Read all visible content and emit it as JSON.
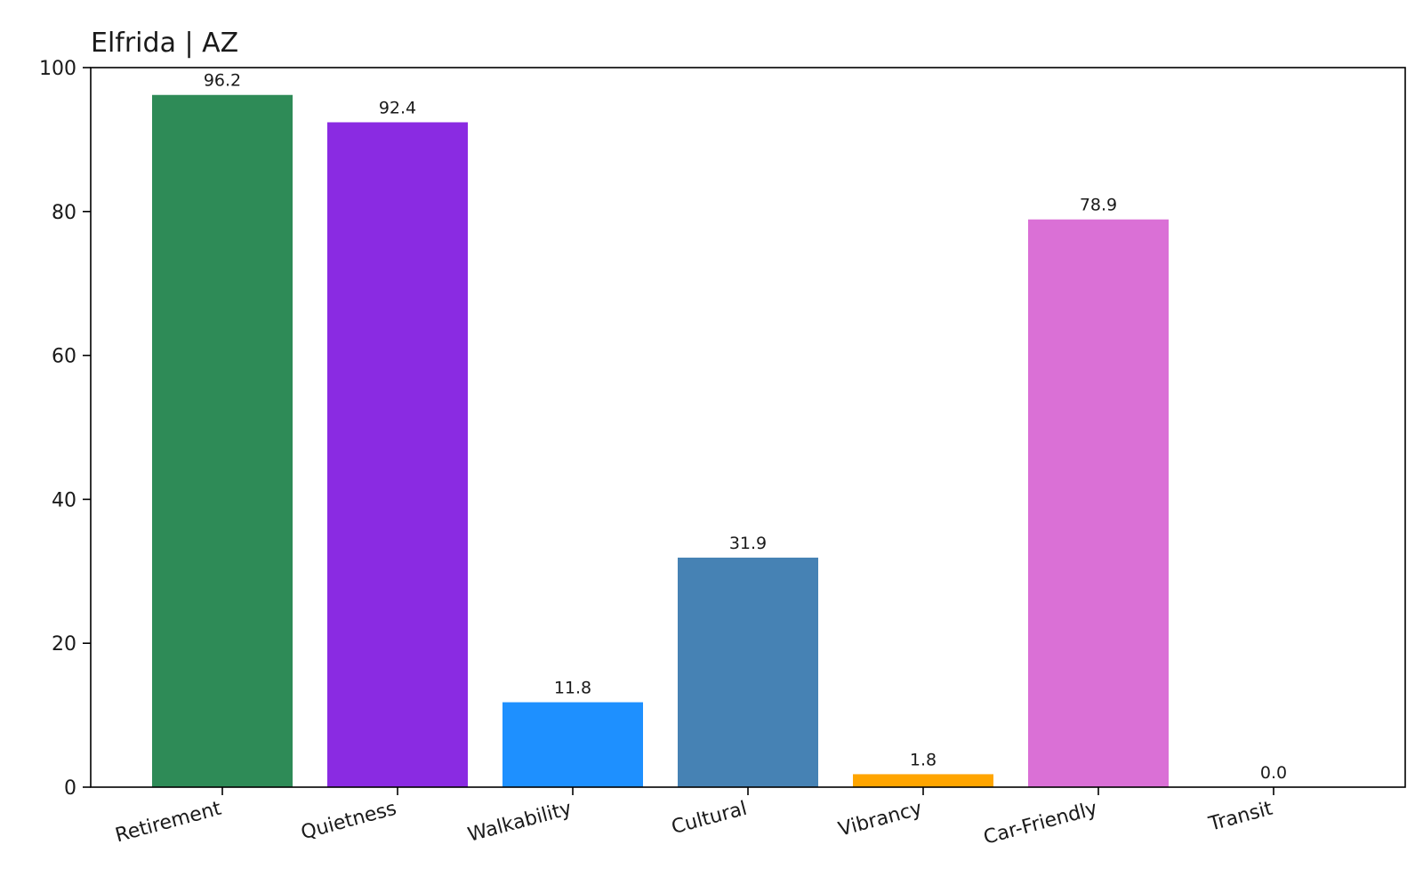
{
  "chart_data": {
    "type": "bar",
    "title": "Elfrida | AZ",
    "xlabel": "",
    "ylabel": "",
    "categories": [
      "Retirement",
      "Quietness",
      "Walkability",
      "Cultural",
      "Vibrancy",
      "Car-Friendly",
      "Transit"
    ],
    "values": [
      96.2,
      92.4,
      11.8,
      31.9,
      1.8,
      78.9,
      0.0
    ],
    "value_labels": [
      "96.2",
      "92.4",
      "11.8",
      "31.9",
      "1.8",
      "78.9",
      "0.0"
    ],
    "colors": [
      "#2e8b57",
      "#8a2be2",
      "#1e90ff",
      "#4682b4",
      "#ffa500",
      "#da70d6",
      "#708090"
    ],
    "ylim": [
      0,
      100
    ],
    "yticks": [
      0,
      20,
      40,
      60,
      80,
      100
    ],
    "ytick_labels": [
      "0",
      "20",
      "40",
      "60",
      "80",
      "100"
    ],
    "grid": false,
    "legend": "none",
    "xtick_rotation": "slanted"
  }
}
